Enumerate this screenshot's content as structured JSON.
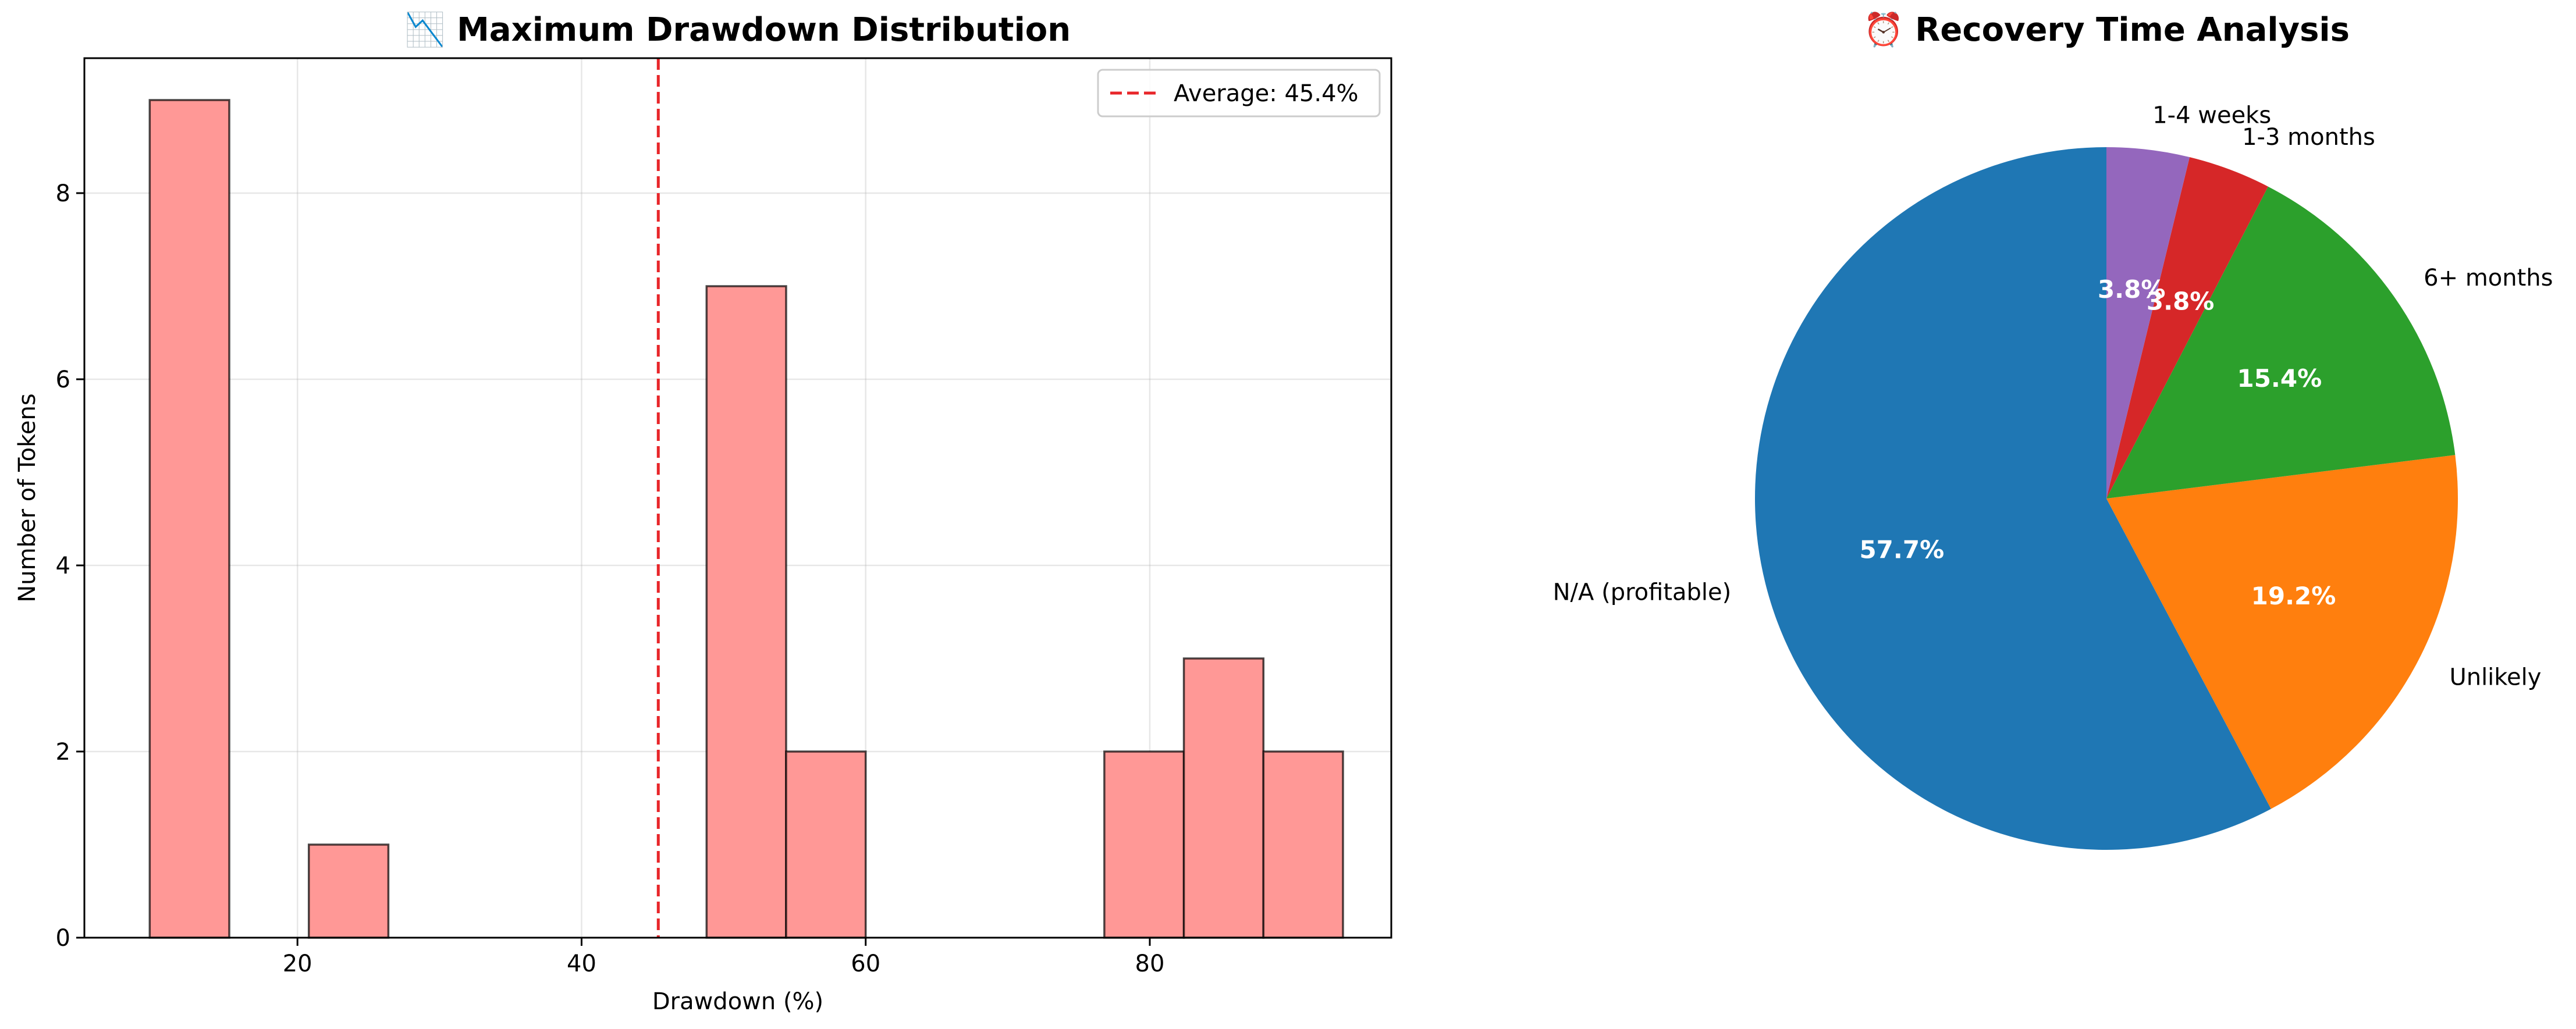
{
  "chart_data": [
    {
      "type": "bar",
      "title": "📉 Maximum Drawdown Distribution",
      "xlabel": "Drawdown (%)",
      "ylabel": "Number of Tokens",
      "xlim": [
        5,
        97
      ],
      "ylim": [
        0,
        9.45
      ],
      "xticks": [
        20,
        40,
        60,
        80
      ],
      "yticks": [
        0,
        2,
        4,
        6,
        8
      ],
      "grid": true,
      "bin_width": 5.6,
      "bins": [
        {
          "start": 9.6,
          "count": 9
        },
        {
          "start": 15.2,
          "count": 0
        },
        {
          "start": 20.8,
          "count": 1
        },
        {
          "start": 26.4,
          "count": 0
        },
        {
          "start": 32.0,
          "count": 0
        },
        {
          "start": 37.6,
          "count": 0
        },
        {
          "start": 43.2,
          "count": 0
        },
        {
          "start": 48.8,
          "count": 7
        },
        {
          "start": 54.4,
          "count": 2
        },
        {
          "start": 60.0,
          "count": 0
        },
        {
          "start": 65.6,
          "count": 0
        },
        {
          "start": 71.2,
          "count": 0
        },
        {
          "start": 76.8,
          "count": 2
        },
        {
          "start": 82.4,
          "count": 3
        },
        {
          "start": 88.0,
          "count": 2
        }
      ],
      "bar_color": "#ff9896",
      "reference_line": {
        "x": 45.4,
        "label": "Average: 45.4%",
        "color": "#e8262a",
        "style": "dashed"
      },
      "legend_position": "upper right"
    },
    {
      "type": "pie",
      "title": "⏰ Recovery Time Analysis",
      "start_angle_deg": 90,
      "direction": "counterclockwise",
      "slices": [
        {
          "label": "N/A (profitable)",
          "value": 57.7,
          "pct_label": "57.7%",
          "color": "#1f77b4"
        },
        {
          "label": "Unlikely",
          "value": 19.2,
          "pct_label": "19.2%",
          "color": "#ff7f0e"
        },
        {
          "label": "6+ months",
          "value": 15.4,
          "pct_label": "15.4%",
          "color": "#2ca02c"
        },
        {
          "label": "1-3 months",
          "value": 3.8,
          "pct_label": "3.8%",
          "color": "#d62728"
        },
        {
          "label": "1-4 weeks",
          "value": 3.8,
          "pct_label": "3.8%",
          "color": "#9467bd"
        }
      ]
    }
  ]
}
